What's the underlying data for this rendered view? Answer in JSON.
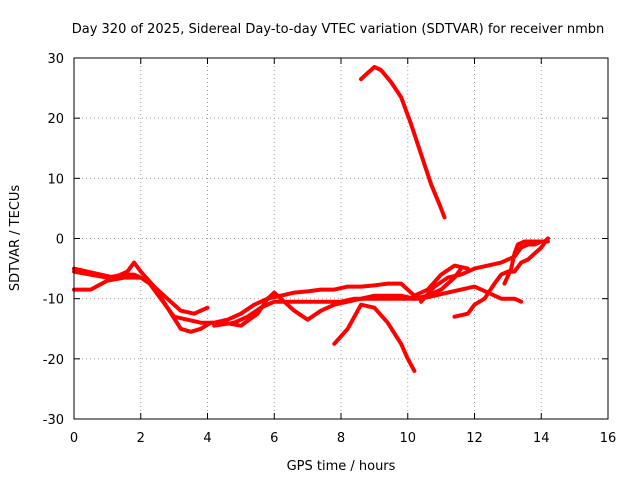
{
  "chart_data": {
    "type": "line",
    "title": "Day 320 of 2025, Sidereal Day-to-day VTEC variation (SDTVAR) for receiver nmbn",
    "xlabel": "GPS time / hours",
    "ylabel": "SDTVAR / TECUs",
    "xlim": [
      0,
      16
    ],
    "ylim": [
      -30,
      30
    ],
    "xticks": [
      0,
      2,
      4,
      6,
      8,
      10,
      12,
      14,
      16
    ],
    "yticks": [
      -30,
      -20,
      -10,
      0,
      10,
      20,
      30
    ],
    "xtick_labels": [
      "0",
      "2",
      "4",
      "6",
      "8",
      "10",
      "12",
      "14",
      "16"
    ],
    "ytick_labels": [
      "-30",
      "-20",
      "-10",
      "0",
      "10",
      "20",
      "30"
    ],
    "grid": true,
    "color": "#ff0000",
    "series": [
      {
        "name": "trace-1",
        "x": [
          0,
          0.5,
          1.0,
          1.5,
          1.8,
          2.2,
          2.6,
          3.0,
          3.4,
          3.8,
          4.2,
          4.6,
          5.0,
          5.4,
          5.8,
          6.2,
          6.6,
          7.0,
          7.4,
          7.8,
          8.2,
          8.6,
          9.0,
          9.4,
          9.8,
          10.2,
          10.6,
          11.0,
          11.4,
          11.8
        ],
        "y": [
          -5.5,
          -6.0,
          -6.5,
          -6.0,
          -6.0,
          -7.0,
          -10.0,
          -13.0,
          -13.5,
          -14.0,
          -14.0,
          -13.5,
          -12.5,
          -11.0,
          -10.0,
          -9.5,
          -9.0,
          -8.8,
          -8.5,
          -8.5,
          -8.0,
          -8.0,
          -7.8,
          -7.5,
          -7.5,
          -9.5,
          -8.5,
          -6.0,
          -4.5,
          -5.0
        ]
      },
      {
        "name": "trace-2",
        "x": [
          0,
          0.4,
          0.8,
          1.2,
          1.6,
          1.8,
          2.0,
          2.4,
          2.8,
          3.2,
          3.5,
          3.8,
          4.1,
          4.5,
          5.0,
          5.5,
          5.8,
          6.0,
          6.2,
          6.6,
          7.0,
          7.4,
          7.8,
          8.2,
          8.6,
          9.0,
          9.4,
          9.8,
          10.2,
          10.6,
          11.0,
          11.4,
          11.6
        ],
        "y": [
          -5.0,
          -5.5,
          -6.0,
          -6.5,
          -5.5,
          -4.0,
          -5.5,
          -8.0,
          -11.5,
          -15.0,
          -15.5,
          -15.0,
          -14.0,
          -14.0,
          -14.5,
          -12.5,
          -10.0,
          -9.0,
          -10.0,
          -12.0,
          -13.5,
          -12.0,
          -11.0,
          -10.5,
          -10.0,
          -9.5,
          -9.5,
          -9.5,
          -10.0,
          -9.5,
          -8.5,
          -6.5,
          -5.0
        ]
      },
      {
        "name": "trace-3",
        "x": [
          0,
          0.5,
          1.0,
          1.5,
          2.0,
          2.4,
          2.8,
          3.2,
          3.6,
          3.8,
          4.0
        ],
        "y": [
          -8.5,
          -8.5,
          -7.0,
          -6.5,
          -6.5,
          -8.0,
          -10.0,
          -12.0,
          -12.5,
          -12.0,
          -11.5
        ]
      },
      {
        "name": "trace-4",
        "x": [
          4.2,
          4.8,
          5.2,
          5.6,
          6.0,
          6.4,
          6.8,
          7.2,
          7.6,
          8.0,
          8.4,
          8.8,
          9.2,
          9.6,
          10.0,
          10.4,
          10.8,
          11.2,
          11.6,
          12.0,
          12.4,
          12.8,
          13.2,
          13.4
        ],
        "y": [
          -14.5,
          -14.0,
          -13.0,
          -11.5,
          -10.5,
          -10.5,
          -10.5,
          -10.5,
          -10.5,
          -10.5,
          -10.0,
          -10.0,
          -10.0,
          -10.0,
          -10.0,
          -10.0,
          -9.5,
          -9.0,
          -8.5,
          -8.0,
          -9.0,
          -10.0,
          -10.0,
          -10.5
        ]
      },
      {
        "name": "trace-5",
        "x": [
          8.6,
          8.8,
          9.0,
          9.2,
          9.5,
          9.8,
          10.1,
          10.4,
          10.7,
          11.0,
          11.1
        ],
        "y": [
          26.5,
          27.5,
          28.5,
          28.0,
          26.0,
          23.5,
          19.0,
          14.0,
          9.0,
          5.0,
          3.5
        ]
      },
      {
        "name": "trace-6",
        "x": [
          7.8,
          8.2,
          8.6,
          9.0,
          9.4,
          9.8,
          10.0,
          10.2
        ],
        "y": [
          -17.5,
          -15.0,
          -11.0,
          -11.5,
          -14.0,
          -17.5,
          -20.0,
          -22.0
        ]
      },
      {
        "name": "trace-7",
        "x": [
          10.4,
          10.8,
          11.2,
          11.6,
          12.0,
          12.4,
          12.8,
          13.0,
          13.2,
          13.4,
          13.6,
          13.8,
          14.0,
          14.2
        ],
        "y": [
          -10.5,
          -8.0,
          -6.5,
          -6.0,
          -5.0,
          -4.5,
          -4.0,
          -3.5,
          -3.0,
          -1.5,
          -1.0,
          -1.0,
          -0.5,
          -0.5
        ]
      },
      {
        "name": "trace-8",
        "x": [
          11.4,
          11.8,
          12.0,
          12.3,
          12.6,
          12.8,
          13.0,
          13.2,
          13.4,
          13.6,
          13.8,
          14.0,
          14.2
        ],
        "y": [
          -13.0,
          -12.5,
          -11.0,
          -10.0,
          -7.5,
          -6.0,
          -5.5,
          -5.5,
          -4.0,
          -3.5,
          -2.5,
          -1.5,
          0.0
        ]
      },
      {
        "name": "trace-9",
        "x": [
          12.9,
          13.1,
          13.2,
          13.3,
          13.5,
          13.7,
          13.9,
          14.1,
          14.2
        ],
        "y": [
          -7.5,
          -5.0,
          -2.5,
          -1.0,
          -0.5,
          -0.5,
          -0.5,
          -0.5,
          0.0
        ]
      }
    ]
  }
}
